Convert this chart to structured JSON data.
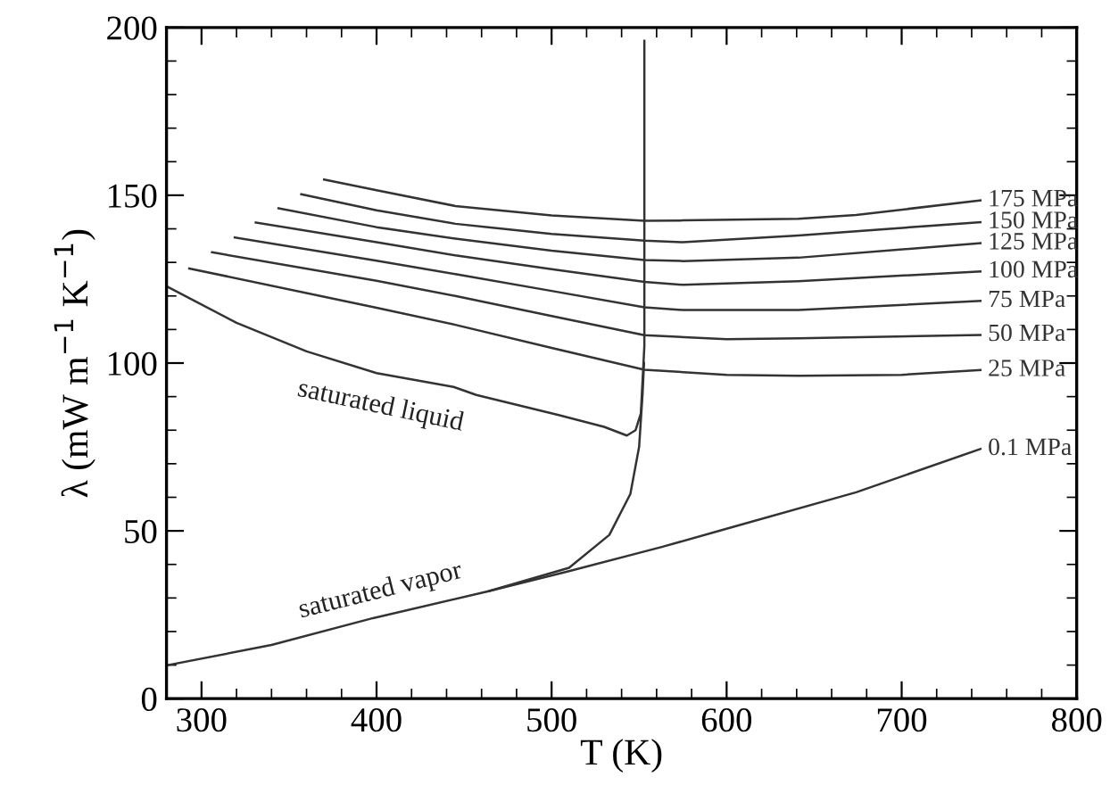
{
  "chart_data": {
    "type": "line",
    "xlabel": "T (K)",
    "ylabel": "λ (mW m$^{−1}$ K$^{−1}$)",
    "xlim": [
      280,
      800
    ],
    "ylim": [
      0,
      200
    ],
    "xticks": [
      300,
      400,
      500,
      600,
      700,
      800
    ],
    "yticks": [
      0,
      50,
      100,
      150,
      200
    ],
    "grid": false,
    "legend": false,
    "marker": "none",
    "line_style": "solid",
    "series": [
      {
        "name": "175 MPa",
        "color": "#333333",
        "x": [
          370,
          400,
          445,
          500,
          553,
          575,
          641,
          674,
          745
        ],
        "values": [
          154.7,
          151.5,
          146.8,
          144.0,
          142.4,
          142.5,
          143.0,
          144.1,
          148.5
        ]
      },
      {
        "name": "150 MPa",
        "color": "#333333",
        "x": [
          357,
          400,
          445,
          500,
          553,
          575,
          641,
          745
        ],
        "values": [
          150.3,
          145.5,
          141.5,
          138.5,
          136.5,
          136.0,
          138.0,
          142.0
        ]
      },
      {
        "name": "125 MPa",
        "color": "#333333",
        "x": [
          344,
          400,
          445,
          500,
          553,
          575,
          641,
          745
        ],
        "values": [
          146.1,
          140.5,
          137.1,
          133.5,
          130.7,
          130.4,
          131.4,
          135.7
        ]
      },
      {
        "name": "100 MPa",
        "color": "#333333",
        "x": [
          331,
          400,
          445,
          500,
          553,
          575,
          641,
          745
        ],
        "values": [
          141.9,
          136.0,
          132.1,
          128.0,
          124.2,
          123.3,
          124.4,
          127.3
        ]
      },
      {
        "name": "75 MPa",
        "color": "#333333",
        "x": [
          319,
          400,
          445,
          500,
          553,
          575,
          641,
          745
        ],
        "values": [
          137.4,
          130.5,
          126.5,
          121.5,
          116.6,
          115.8,
          115.8,
          118.5
        ]
      },
      {
        "name": "50 MPa",
        "color": "#333333",
        "x": [
          306,
          400,
          445,
          500,
          553,
          600,
          641,
          745
        ],
        "values": [
          133.0,
          124.5,
          120.0,
          114.0,
          108.3,
          107.1,
          107.4,
          108.4
        ]
      },
      {
        "name": "25 MPa",
        "color": "#333333",
        "x": [
          293,
          400,
          445,
          500,
          553,
          600,
          641,
          700,
          745
        ],
        "values": [
          128.2,
          116.5,
          111.4,
          104.5,
          98.0,
          96.5,
          96.2,
          96.5,
          97.9
        ]
      },
      {
        "name": "0.1 MPa",
        "color": "#333333",
        "x": [
          464,
          510,
          563,
          599,
          674,
          745
        ],
        "values": [
          32.0,
          38.0,
          45.2,
          50.5,
          61.5,
          74.4
        ]
      },
      {
        "color": "#333333",
        "x": [
          280,
          320,
          360,
          400,
          444,
          457,
          504,
          530,
          543,
          548,
          551,
          553,
          553
        ],
        "values": [
          122.9,
          112.0,
          103.5,
          97.0,
          92.9,
          90.5,
          84.5,
          81.0,
          78.4,
          80.0,
          85.0,
          105.0,
          196.0
        ]
      },
      {
        "color": "#333333",
        "x": [
          280,
          340,
          398,
          464,
          510,
          533,
          545,
          550,
          552,
          552.8
        ],
        "values": [
          9.9,
          16.0,
          24.0,
          32.0,
          39.0,
          48.8,
          61.0,
          75.0,
          91.0,
          100.0
        ]
      }
    ],
    "annotations": [
      "saturated liquid",
      "saturated vapor"
    ]
  }
}
